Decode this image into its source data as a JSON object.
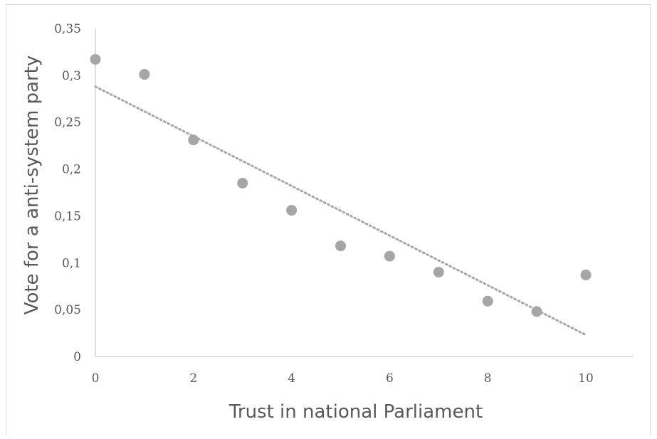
{
  "chart_data": {
    "type": "scatter",
    "title": "",
    "xlabel": "Trust in national Parliament",
    "ylabel": "Vote for a anti-system party",
    "xlim": [
      0,
      10
    ],
    "ylim": [
      0,
      0.35
    ],
    "x_ticks": [
      0,
      2,
      4,
      6,
      8,
      10
    ],
    "x_tick_labels": [
      "0",
      "2",
      "4",
      "6",
      "8",
      "10"
    ],
    "y_ticks": [
      0,
      0.05,
      0.1,
      0.15,
      0.2,
      0.25,
      0.3,
      0.35
    ],
    "y_tick_labels": [
      "0",
      "0,05",
      "0,1",
      "0,15",
      "0,2",
      "0,25",
      "0,3",
      "0,35"
    ],
    "grid": false,
    "legend": "none",
    "series": [
      {
        "x": [
          0,
          1,
          2,
          3,
          4,
          5,
          6,
          7,
          8,
          9,
          10
        ],
        "y": [
          0.317,
          0.301,
          0.231,
          0.185,
          0.156,
          0.118,
          0.107,
          0.09,
          0.059,
          0.048,
          0.087
        ],
        "color": "#a6a6a6"
      }
    ],
    "trendline": {
      "style": "dotted",
      "x": [
        0,
        10
      ],
      "y": [
        0.288,
        0.023
      ],
      "color": "#a6a6a6"
    }
  }
}
